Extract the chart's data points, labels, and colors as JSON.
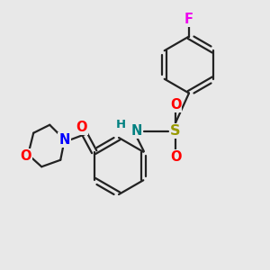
{
  "bg_color": "#e8e8e8",
  "bond_color": "#222222",
  "bond_width": 1.6,
  "atom_colors": {
    "F": "#ee00ee",
    "O": "#ff0000",
    "N_morph": "#0000ff",
    "N_sulfonamide": "#008080",
    "S": "#999900",
    "H": "#008080",
    "C": "#222222"
  },
  "font_size": 9.5,
  "fig_size": [
    3.0,
    3.0
  ],
  "dpi": 100
}
